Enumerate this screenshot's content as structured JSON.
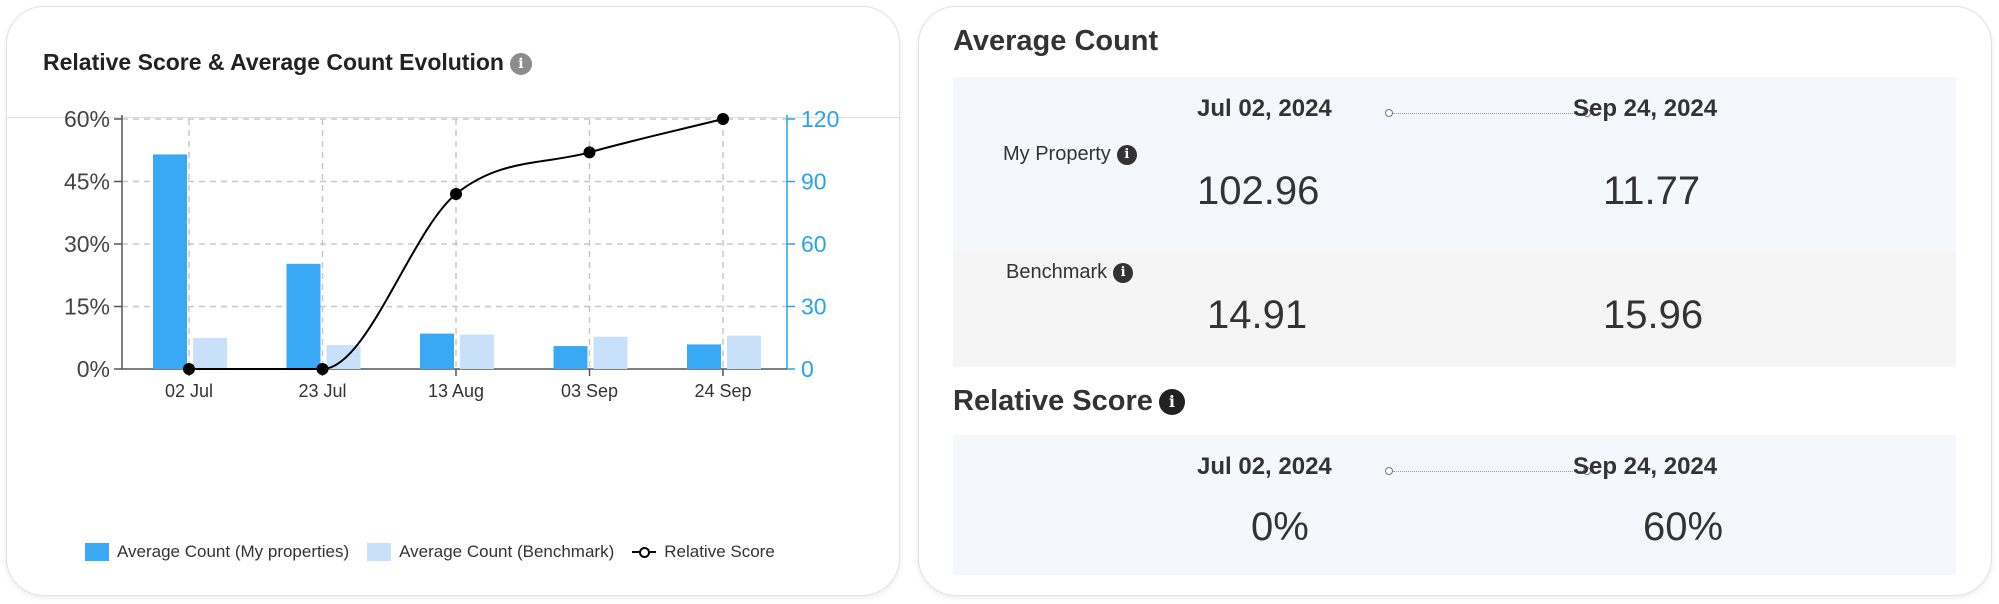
{
  "left_card": {
    "title": "Relative Score & Average Count Evolution",
    "info": "i"
  },
  "chart_data": {
    "type": "bar",
    "categories": [
      "02 Jul",
      "23 Jul",
      "13 Aug",
      "03 Sep",
      "24 Sep"
    ],
    "series": [
      {
        "name": "Average Count (My properties)",
        "type": "bar",
        "axis": "right",
        "color": "#3aa9f5",
        "values": [
          103,
          50.5,
          17,
          11,
          11.8
        ]
      },
      {
        "name": "Average Count (Benchmark)",
        "type": "bar",
        "axis": "right",
        "color": "#c9e0fb",
        "values": [
          14.9,
          11.5,
          16.5,
          15.5,
          16
        ]
      },
      {
        "name": "Relative Score",
        "type": "line",
        "axis": "left",
        "color": "#000000",
        "values": [
          0,
          0,
          42,
          52,
          60
        ]
      }
    ],
    "y_left": {
      "ticks": [
        "0%",
        "15%",
        "30%",
        "45%",
        "60%"
      ],
      "range": [
        0,
        60
      ]
    },
    "y_right": {
      "ticks": [
        "0",
        "30",
        "60",
        "90",
        "120"
      ],
      "range": [
        0,
        120
      ],
      "color": "#29a3ef"
    },
    "grid": true,
    "legend_position": "bottom"
  },
  "right_card": {
    "average_count": {
      "title": "Average Count",
      "start_date": "Jul 02, 2024",
      "end_date": "Sep 24, 2024",
      "rows": [
        {
          "label": "My Property",
          "start": "102.96",
          "end": "11.77"
        },
        {
          "label": "Benchmark",
          "start": "14.91",
          "end": "15.96"
        }
      ]
    },
    "relative_score": {
      "title": "Relative Score",
      "start_date": "Jul 02, 2024",
      "end_date": "Sep 24, 2024",
      "start": "0%",
      "end": "60%"
    },
    "info": "i"
  }
}
